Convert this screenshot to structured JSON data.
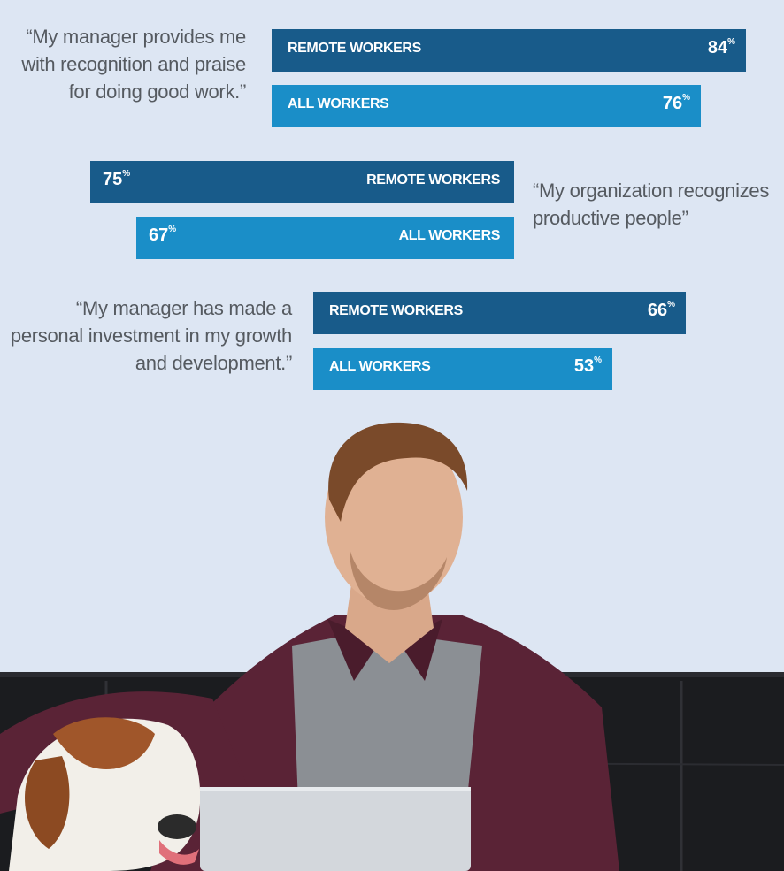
{
  "chart_data": {
    "type": "bar",
    "orientation": "horizontal",
    "unit": "%",
    "groups": [
      {
        "quote": "“My manager provides me with recognition and praise for doing good work.”",
        "quote_side": "left",
        "bars": [
          {
            "series": "REMOTE WORKERS",
            "value": 84
          },
          {
            "series": "ALL WORKERS",
            "value": 76
          }
        ]
      },
      {
        "quote": "“My organization recognizes productive people”",
        "quote_side": "right",
        "bars": [
          {
            "series": "REMOTE WORKERS",
            "value": 75
          },
          {
            "series": "ALL WORKERS",
            "value": 67
          }
        ]
      },
      {
        "quote": "“My manager has made a personal investment in my growth and development.”",
        "quote_side": "left",
        "bars": [
          {
            "series": "REMOTE WORKERS",
            "value": 66
          },
          {
            "series": "ALL WORKERS",
            "value": 53
          }
        ]
      }
    ],
    "colors": {
      "REMOTE WORKERS": "#185b8a",
      "ALL WORKERS": "#1a8ec8"
    }
  }
}
